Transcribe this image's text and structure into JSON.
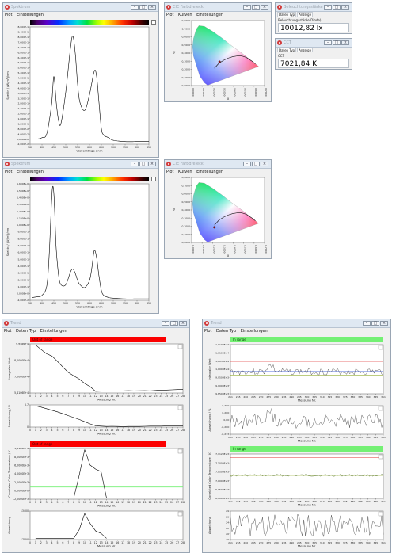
{
  "window_controls": {
    "minimize": "–",
    "maximize": "□",
    "close": "×"
  },
  "spectrum_win_1": {
    "title": "Spektrum",
    "menu": [
      "Plot",
      "Einstellungen"
    ],
    "chart_data": {
      "type": "line",
      "x": [
        360,
        380,
        400,
        420,
        440,
        450,
        460,
        470,
        480,
        500,
        520,
        530,
        540,
        550,
        560,
        580,
        600,
        620,
        630,
        640,
        650,
        660,
        680,
        700,
        750,
        800,
        850
      ],
      "series": [
        {
          "values": [
            0.02,
            0.02,
            0.03,
            0.06,
            0.28,
            0.5,
            0.3,
            0.16,
            0.14,
            0.38,
            0.72,
            0.81,
            0.68,
            0.44,
            0.3,
            0.24,
            0.36,
            0.54,
            0.5,
            0.3,
            0.1,
            0.05,
            0.03,
            0.01,
            0.0,
            0.0,
            0.0
          ]
        }
      ],
      "xlabel": "Wellenlänge / nm",
      "ylabel": "Spektr. / (W/m²)/nm",
      "xlim": [
        350,
        850
      ],
      "ylim": [
        -0.02,
        0.88
      ],
      "yticks": [
        "8,800E-1",
        "8,400E-1",
        "8,000E-1",
        "7,600E-1",
        "7,200E-1",
        "6,800E-1",
        "6,400E-1",
        "6,000E-1",
        "5,600E-1",
        "5,200E-1",
        "4,800E-1",
        "4,400E-1",
        "4,000E-1",
        "3,600E-1",
        "3,200E-1",
        "2,800E-1",
        "2,400E-1",
        "2,000E-1",
        "1,600E-1",
        "1,200E-1",
        "8,000E-2",
        "4,000E-2",
        "0,000E+0",
        "-2,000E-2"
      ],
      "xticks": [
        "360",
        "400",
        "450",
        "500",
        "550",
        "600",
        "650",
        "700",
        "750",
        "800",
        "850"
      ]
    }
  },
  "spectrum_win_2": {
    "title": "Spektrum",
    "menu": [
      "Plot",
      "Einstellungen"
    ],
    "chart_data": {
      "type": "line",
      "x": [
        360,
        380,
        400,
        420,
        430,
        440,
        445,
        450,
        455,
        460,
        470,
        480,
        500,
        520,
        530,
        540,
        550,
        560,
        580,
        600,
        610,
        620,
        630,
        640,
        650,
        660,
        680,
        700,
        750,
        800,
        850
      ],
      "series": [
        {
          "values": [
            0.02,
            0.03,
            0.05,
            0.18,
            0.6,
            1.35,
            1.58,
            1.48,
            1.1,
            0.7,
            0.33,
            0.2,
            0.2,
            0.38,
            0.42,
            0.36,
            0.26,
            0.2,
            0.16,
            0.26,
            0.44,
            0.68,
            0.58,
            0.32,
            0.12,
            0.05,
            0.02,
            0.01,
            0.0,
            0.0,
            0.0
          ]
        }
      ],
      "xlabel": "Wellenlänge / nm",
      "ylabel": "Spektr. / (W/m²)/nm",
      "xlim": [
        350,
        850
      ],
      "ylim": [
        -0.02,
        1.62
      ],
      "yticks": [
        "1,600E+0",
        "1,500E+0",
        "1,400E+0",
        "1,300E+0",
        "1,200E+0",
        "1,100E+0",
        "1,000E+0",
        "9,000E-1",
        "8,000E-1",
        "7,000E-1",
        "6,000E-1",
        "5,000E-1",
        "4,000E-1",
        "3,000E-1",
        "2,000E-1",
        "1,000E-1",
        "0,000E+0",
        "-2,000E-2"
      ],
      "xticks": [
        "360",
        "400",
        "450",
        "500",
        "550",
        "600",
        "650",
        "700",
        "750",
        "800",
        "850"
      ]
    }
  },
  "cie_win_1": {
    "title": "CIE Farbdreieck",
    "menu": [
      "Plot",
      "Kurven",
      "Einstellungen"
    ],
    "chart_data": {
      "type": "scatter",
      "points": [
        {
          "x": 0.306,
          "y": 0.33
        }
      ],
      "xlabel": "x",
      "ylabel": "y",
      "xticks": [
        "0,0000",
        "0,1000",
        "0,2000",
        "0,3000",
        "0,4000",
        "0,5000",
        "0,6000",
        "0,7000"
      ],
      "yticks": [
        "0,8000",
        "0,7000",
        "0,6000",
        "0,5000",
        "0,4000",
        "0,3000",
        "0,2000",
        "0,1000",
        "0,0000"
      ]
    }
  },
  "cie_win_2": {
    "title": "CIE Farbdreieck",
    "menu": [
      "Plot",
      "Kurven",
      "Einstellungen"
    ],
    "chart_data": {
      "type": "scatter",
      "points": [
        {
          "x": 0.25,
          "y": 0.21
        }
      ],
      "xlabel": "x",
      "ylabel": "y",
      "xticks": [
        "0,0000",
        "0,1000",
        "0,2000",
        "0,3000",
        "0,4000",
        "0,5000",
        "0,6000",
        "0,7000"
      ],
      "yticks": [
        "0,8000",
        "0,7000",
        "0,6000",
        "0,5000",
        "0,4000",
        "0,3000",
        "0,2000",
        "0,1000",
        "0,0000"
      ]
    }
  },
  "value_win_1": {
    "title": "Beleuchtungsstärke",
    "tabs": [
      "Daten Typ",
      "Anzeige"
    ],
    "label": "Beleuchtungsstärke(Diode)",
    "value": "10012,82 lx"
  },
  "value_win_2": {
    "title": "CCT",
    "tabs": [
      "Daten Typ",
      "Anzeige"
    ],
    "label": "CCT",
    "value": "7021,84 K"
  },
  "trend_win_left": {
    "title": "Trend",
    "menu": [
      "Plot",
      "Daten Typ",
      "Einstellungen"
    ],
    "colors": {
      "banner_out": "#fb0000",
      "limit": "#74f074"
    },
    "panels": [
      {
        "banner": "Out of range",
        "chart_data": {
          "type": "line",
          "xlabel": "Messung Nr.",
          "ylabel": "Integraler Wert",
          "x": [
            1,
            2,
            3,
            4,
            5,
            6,
            7,
            8,
            9,
            10,
            11,
            12,
            13,
            14,
            15,
            16,
            17,
            18,
            19,
            20,
            21,
            22,
            23,
            24,
            25,
            26,
            27,
            28
          ],
          "series": [
            {
              "values": [
                9.85,
                9.42,
                9.02,
                8.8,
                8.3,
                7.75,
                7.25,
                6.92,
                6.62,
                6.2,
                5.9,
                5.45,
                5.47,
                5.49,
                5.49,
                5.5,
                5.5,
                5.52,
                5.5,
                5.51,
                5.52,
                5.5,
                5.54,
                5.58,
                5.58,
                5.6,
                5.62,
                5.62
              ]
            }
          ],
          "ylim": [
            5.3,
            9.95
          ],
          "yticks": [
            "9,9486+4",
            "8,0000E+4",
            "7,0000E+4",
            "5,4106E+4"
          ],
          "xticks": [
            "0",
            "1",
            "2",
            "3",
            "4",
            "5",
            "6",
            "7",
            "8",
            "9",
            "10",
            "11",
            "12",
            "13",
            "14",
            "15",
            "16",
            "17",
            "18",
            "19",
            "20",
            "21",
            "22",
            "23",
            "24",
            "25",
            "26",
            "27",
            "28"
          ]
        }
      },
      {
        "chart_data": {
          "type": "line",
          "xlabel": "Messung Nr.",
          "ylabel": "Abweichung / %",
          "x": [
            1,
            2,
            3,
            4,
            5,
            6,
            7,
            8,
            9,
            10,
            11,
            12,
            13,
            14,
            15,
            16,
            17,
            18,
            19,
            20,
            21,
            22,
            23,
            24,
            25,
            26,
            27,
            28
          ],
          "series": [
            {
              "values": [
                6.7,
                6.3,
                5.8,
                5.3,
                4.8,
                4.2,
                3.6,
                3.0,
                2.4,
                1.7,
                1.0,
                0.4,
                0.3,
                0.2,
                0.25,
                0.2,
                0.15,
                0.2,
                0.2,
                0.2,
                0.25,
                0.3,
                0.3,
                0.3,
                0.35,
                0.35,
                0.35,
                0.4
              ]
            }
          ],
          "ylim": [
            0,
            7
          ],
          "yticks": [
            "6,7",
            "0"
          ],
          "xticks": [
            "0",
            "1",
            "2",
            "3",
            "4",
            "5",
            "6",
            "7",
            "8",
            "9",
            "10",
            "11",
            "12",
            "13",
            "14",
            "15",
            "16",
            "17",
            "18",
            "19",
            "20",
            "21",
            "22",
            "23",
            "24",
            "25",
            "26",
            "27",
            "28"
          ]
        }
      },
      {
        "banner": "Out of range",
        "chart_data": {
          "type": "line",
          "xlabel": "Messung Nr.",
          "ylabel": "Correlated Color Temperature / K",
          "x": [
            1,
            2,
            3,
            4,
            5,
            6,
            7,
            8,
            9,
            10,
            11,
            12,
            13,
            14
          ],
          "series": [
            {
              "values": [
                -0.6,
                -0.6,
                -0.6,
                -0.6,
                -0.6,
                -0.6,
                -0.6,
                -0.6,
                5.0,
                11.3,
                7.5,
                6.5,
                5.9,
                -0.6
              ]
            }
          ],
          "limit": 2.1,
          "ylim": [
            -0.9,
            11.6
          ],
          "yticks": [
            "1,1186E+4",
            "8,0000E+3",
            "6,0000E+3",
            "4,0000E+3",
            "2,0000E+3",
            "0,0000E+0",
            "-2,0000E+3"
          ],
          "xticks": [
            "0",
            "1",
            "2",
            "3",
            "4",
            "5",
            "6",
            "7",
            "8",
            "9",
            "10",
            "11",
            "12",
            "13",
            "14",
            "15",
            "16",
            "17",
            "18",
            "19",
            "20",
            "21",
            "22",
            "23",
            "24",
            "25",
            "26",
            "27",
            "28"
          ]
        }
      },
      {
        "chart_data": {
          "type": "line",
          "xlabel": "Messung Nr.",
          "ylabel": "Abweichung",
          "x": [
            1,
            2,
            3,
            4,
            5,
            6,
            7,
            8,
            9,
            10,
            11,
            12,
            13,
            14
          ],
          "series": [
            {
              "values": [
                0,
                0,
                0,
                0,
                0,
                0,
                0,
                0,
                35,
                100,
                60,
                30,
                20,
                0
              ]
            }
          ],
          "ylim": [
            -5,
            110
          ],
          "yticks": [
            "13400",
            "-17000"
          ],
          "xticks": [
            "0",
            "1",
            "2",
            "3",
            "4",
            "5",
            "6",
            "7",
            "8",
            "9",
            "10",
            "11",
            "12",
            "13",
            "14",
            "15",
            "16",
            "17",
            "18",
            "19",
            "20",
            "21",
            "22",
            "23",
            "24",
            "25",
            "26",
            "27",
            "28"
          ]
        }
      }
    ]
  },
  "trend_win_right": {
    "title": "Trend",
    "menu": [
      "Plot",
      "Daten Typ",
      "Einstellungen"
    ],
    "colors": {
      "banner_in": "#74f074",
      "upper": "#e03030",
      "lower": "#7a9a00",
      "main": "#1a3cd0"
    },
    "panels": [
      {
        "banner": "In range",
        "chart_data": {
          "type": "line",
          "xlabel": "Messung Nr.",
          "ylabel": "Integraler Wert",
          "yticks": [
            "1,0190E+4",
            "1,0100E+4",
            "1,0050E+4",
            "1,0000E+4",
            "9,9500E+3",
            "9,9000E+3",
            "9,8500E+3"
          ],
          "xticks": [
            "251",
            "255",
            "260",
            "265",
            "270",
            "275",
            "280",
            "285",
            "290",
            "295",
            "300",
            "305",
            "310",
            "315",
            "320",
            "325",
            "330",
            "335",
            "340",
            "345",
            "351"
          ]
        }
      },
      {
        "chart_data": {
          "type": "line",
          "xlabel": "Messung Nr.",
          "ylabel": "Abweichung / %",
          "yticks": [
            "0,400",
            "0,200",
            "0,00",
            "-0,200",
            "-0,273"
          ],
          "xticks": [
            "251",
            "255",
            "260",
            "265",
            "270",
            "275",
            "280",
            "285",
            "290",
            "295",
            "300",
            "305",
            "310",
            "315",
            "320",
            "325",
            "330",
            "335",
            "340",
            "345",
            "351"
          ]
        }
      },
      {
        "banner": "In range",
        "chart_data": {
          "type": "line",
          "xlabel": "Messung Nr.",
          "ylabel": "Correlated Color Temperature / K",
          "yticks": [
            "7,1120E+3",
            "7,1000E+3",
            "7,0500E+3",
            "7,0000E+3",
            "6,9500E+3",
            "6,9000E+3"
          ],
          "xticks": [
            "251",
            "255",
            "260",
            "265",
            "270",
            "275",
            "280",
            "285",
            "290",
            "295",
            "300",
            "305",
            "310",
            "315",
            "320",
            "325",
            "330",
            "335",
            "340",
            "345",
            "351"
          ]
        }
      },
      {
        "chart_data": {
          "type": "line",
          "xlabel": "Messung Nr.",
          "ylabel": "Abweichung",
          "yticks": [
            "29",
            "26",
            "24",
            "22",
            "20",
            "19"
          ],
          "xticks": [
            "251",
            "255",
            "260",
            "265",
            "270",
            "275",
            "280",
            "285",
            "290",
            "295",
            "300",
            "305",
            "310",
            "315",
            "320",
            "325",
            "330",
            "335",
            "340",
            "345",
            "351"
          ]
        }
      }
    ]
  }
}
